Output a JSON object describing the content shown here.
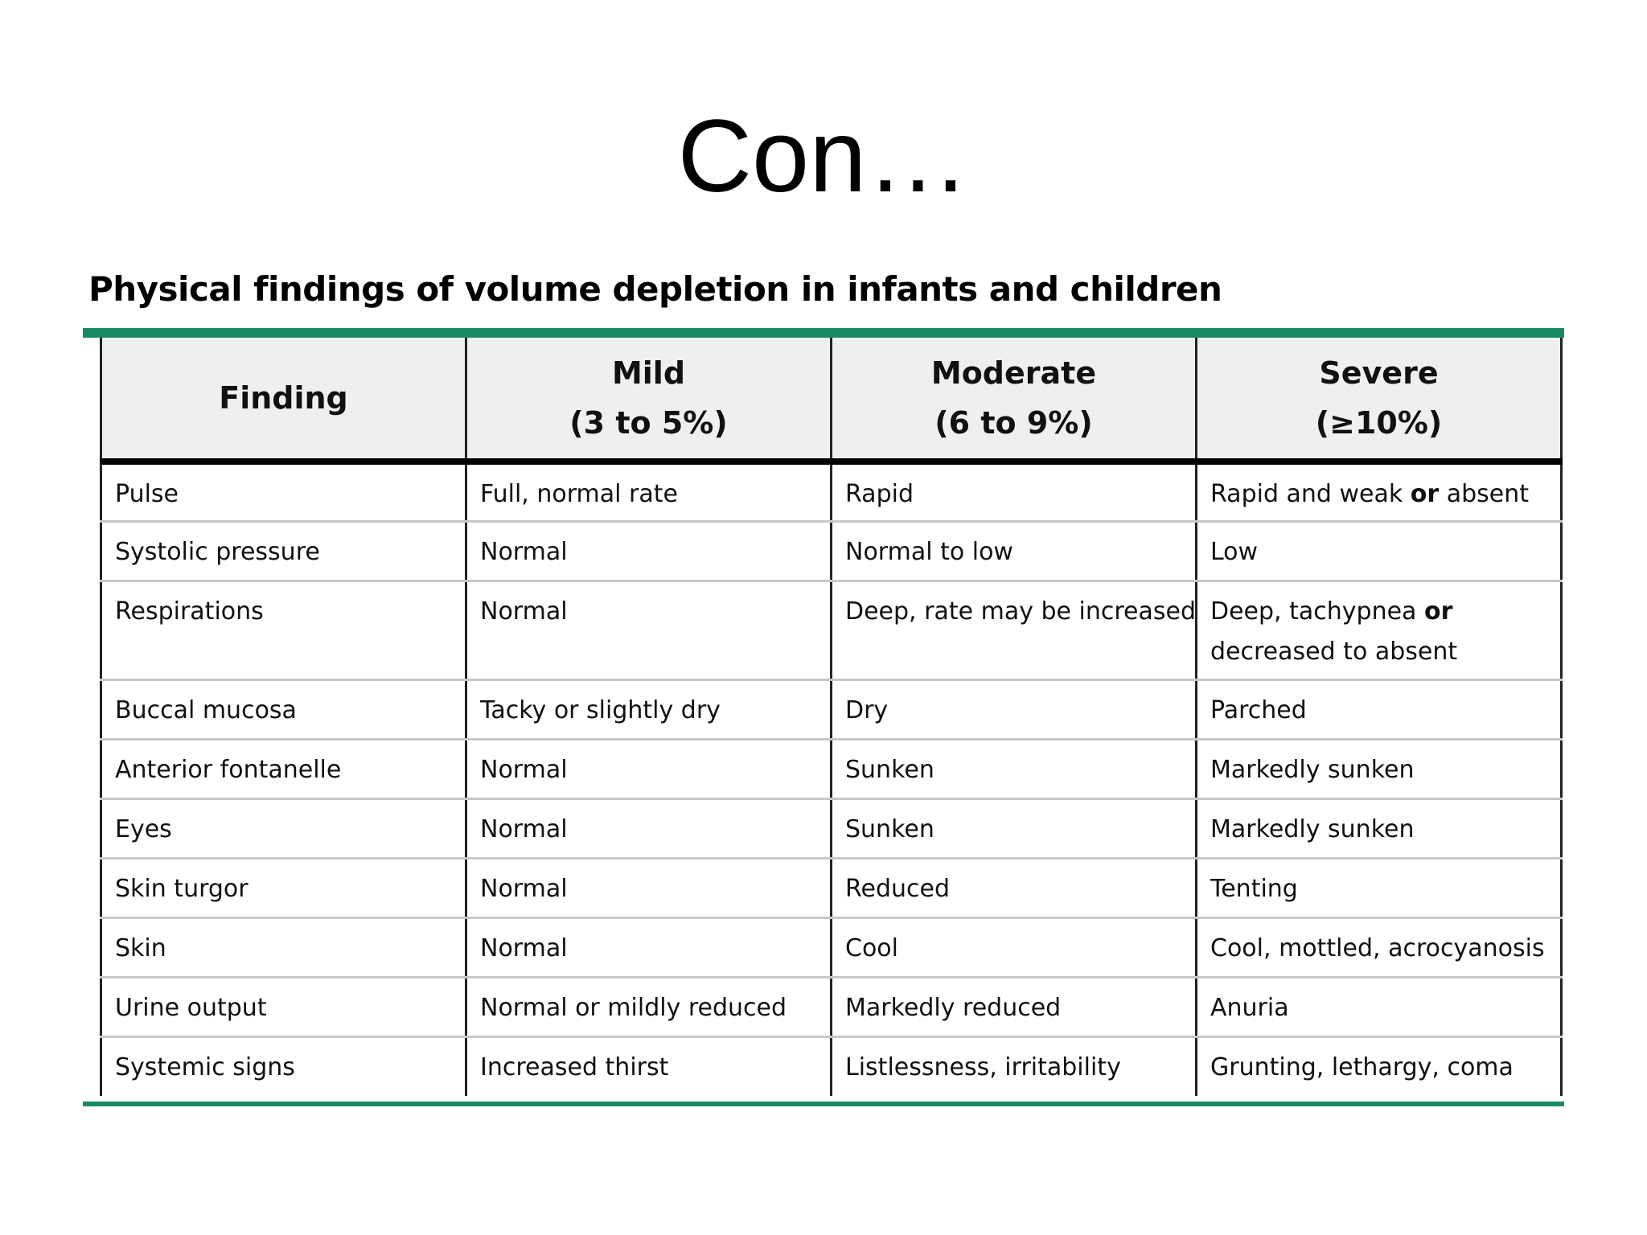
{
  "slide": {
    "title": "Con…"
  },
  "table": {
    "caption": "Physical findings of volume depletion in infants and children",
    "accent_color": "#1a8a66",
    "headers": [
      {
        "line1": "Finding",
        "line2": ""
      },
      {
        "line1": "Mild",
        "line2": "(3 to 5%)"
      },
      {
        "line1": "Moderate",
        "line2": "(6 to 9%)"
      },
      {
        "line1": "Severe",
        "line2": "(≥10%)"
      }
    ],
    "rows": [
      {
        "finding": "Pulse",
        "mild": "Full, normal rate",
        "moderate": "Rapid",
        "severe": {
          "pre": "Rapid and weak ",
          "bold": "or",
          "post": " absent"
        }
      },
      {
        "finding": "Systolic pressure",
        "mild": "Normal",
        "moderate": "Normal to low",
        "severe": {
          "pre": "Low",
          "bold": "",
          "post": ""
        }
      },
      {
        "finding": "Respirations",
        "mild": "Normal",
        "moderate": "Deep, rate may be increased",
        "severe": {
          "pre": "Deep, tachypnea ",
          "bold": "or",
          "post": " decreased to absent"
        }
      },
      {
        "finding": "Buccal mucosa",
        "mild": "Tacky or slightly dry",
        "moderate": "Dry",
        "severe": {
          "pre": "Parched",
          "bold": "",
          "post": ""
        }
      },
      {
        "finding": "Anterior fontanelle",
        "mild": "Normal",
        "moderate": "Sunken",
        "severe": {
          "pre": "Markedly sunken",
          "bold": "",
          "post": ""
        }
      },
      {
        "finding": "Eyes",
        "mild": "Normal",
        "moderate": "Sunken",
        "severe": {
          "pre": "Markedly sunken",
          "bold": "",
          "post": ""
        }
      },
      {
        "finding": "Skin turgor",
        "mild": "Normal",
        "moderate": "Reduced",
        "severe": {
          "pre": "Tenting",
          "bold": "",
          "post": ""
        }
      },
      {
        "finding": "Skin",
        "mild": "Normal",
        "moderate": "Cool",
        "severe": {
          "pre": "Cool, mottled, acrocyanosis",
          "bold": "",
          "post": ""
        }
      },
      {
        "finding": "Urine output",
        "mild": "Normal or mildly reduced",
        "moderate": "Markedly reduced",
        "severe": {
          "pre": "Anuria",
          "bold": "",
          "post": ""
        }
      },
      {
        "finding": "Systemic signs",
        "mild": "Increased thirst",
        "moderate": "Listlessness, irritability",
        "severe": {
          "pre": "Grunting, lethargy, coma",
          "bold": "",
          "post": ""
        }
      }
    ]
  }
}
